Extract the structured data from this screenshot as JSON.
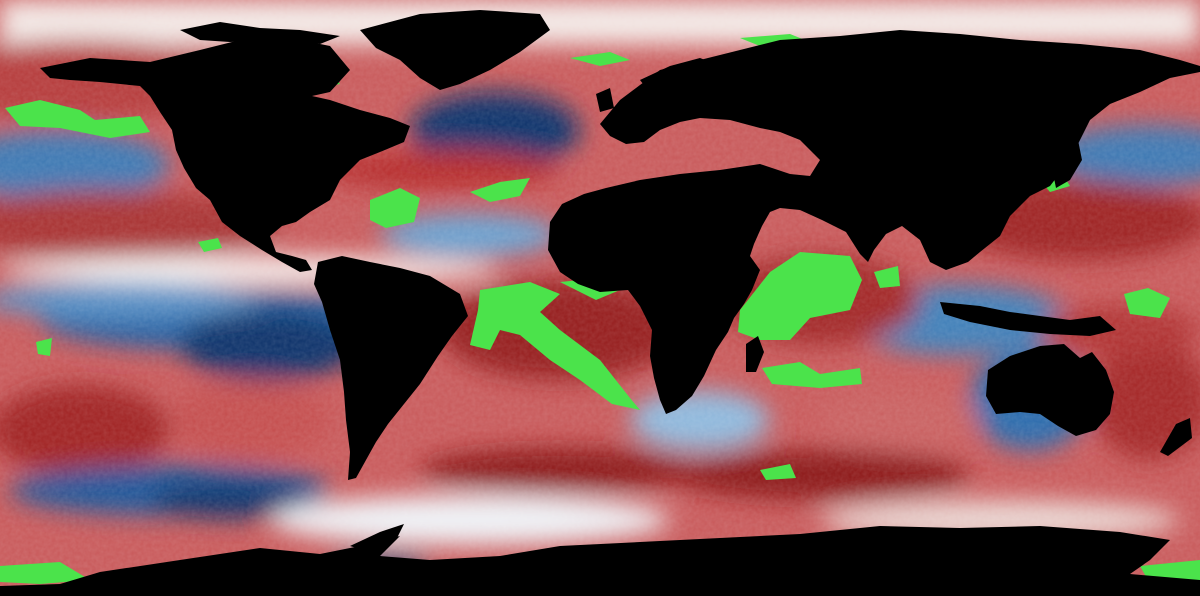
{
  "map": {
    "projection": "equirectangular",
    "extent": {
      "lon": [
        -180,
        180
      ],
      "lat": [
        -90,
        90
      ]
    },
    "colors": {
      "land": "#000000",
      "highlight": "#4be34b",
      "cold_strong": "#08306b",
      "cold": "#3f7fb8",
      "neutral": "#f4f0ee",
      "warm": "#d6604d",
      "warm_strong": "#67001f"
    },
    "legend": null
  }
}
